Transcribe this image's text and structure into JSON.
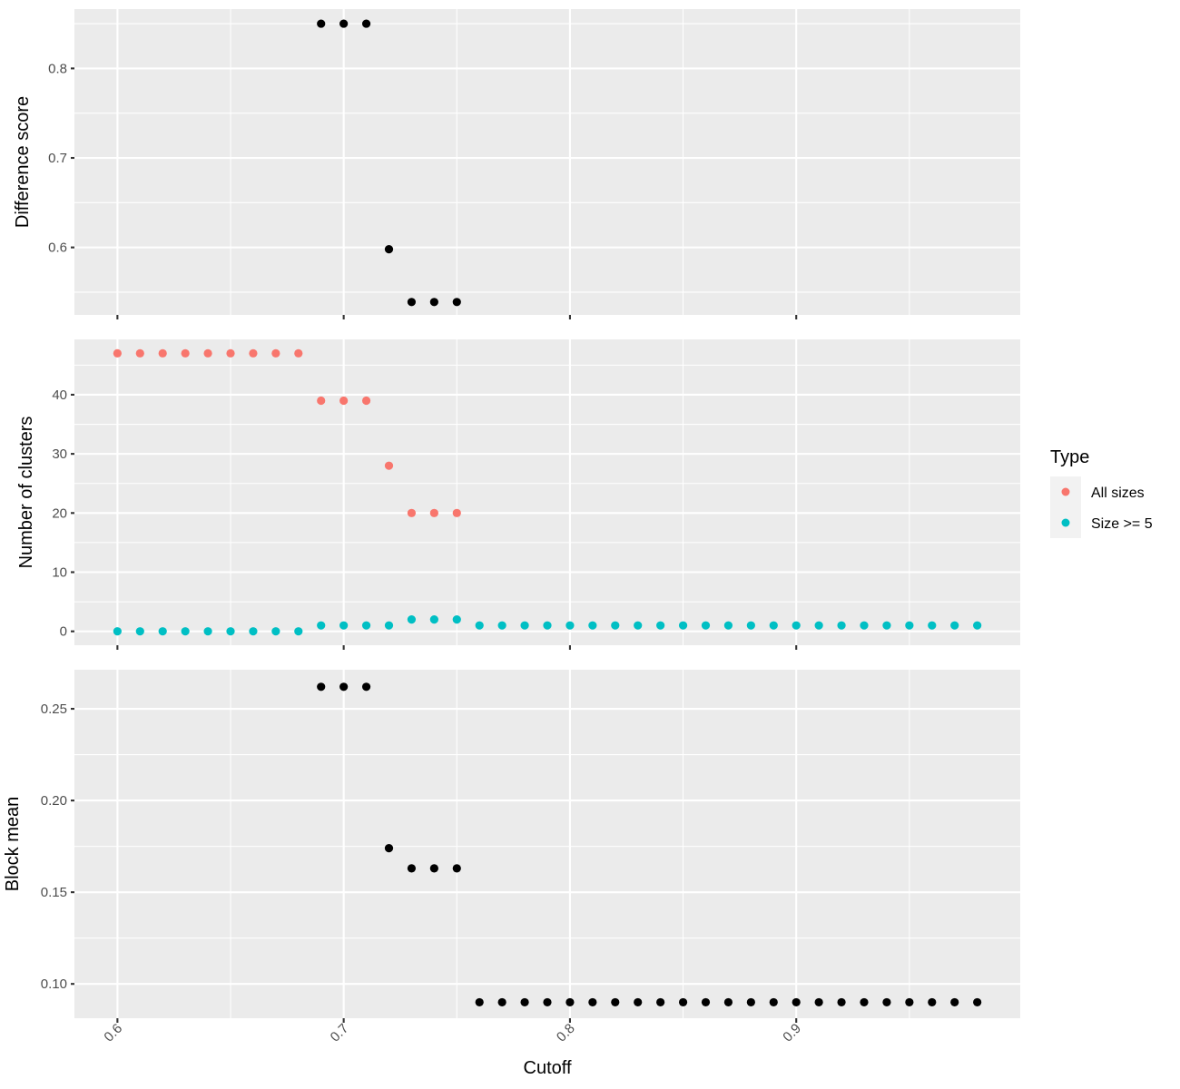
{
  "colors": {
    "all_sizes": "#F8766D",
    "size_ge_5": "#00BFC4",
    "black": "#000000",
    "panel": "#EBEBEB"
  },
  "chart_data": {
    "type": "scatter",
    "xlabel": "Cutoff",
    "x_ticks": [
      "0.6",
      "0.7",
      "0.8",
      "0.9"
    ],
    "xlim": [
      0.581,
      0.999
    ],
    "grid": true,
    "legend": {
      "title": "Type",
      "placement": "right",
      "entries": [
        {
          "label": "All sizes",
          "color": "#F8766D"
        },
        {
          "label": "Size >= 5",
          "color": "#00BFC4"
        }
      ]
    },
    "panels": [
      {
        "id": "difference",
        "ylabel": "Difference score",
        "ylim": [
          0.5246,
          0.8663
        ],
        "y_ticks": [
          "0.6",
          "0.7",
          "0.8"
        ],
        "series": [
          {
            "color": "#000000",
            "x": [
              0.69,
              0.7,
              0.71,
              0.72,
              0.73,
              0.74,
              0.75
            ],
            "y": [
              0.85,
              0.85,
              0.85,
              0.598,
              0.539,
              0.539,
              0.539
            ]
          }
        ]
      },
      {
        "id": "clusters",
        "ylabel": "Number of clusters",
        "ylim": [
          -2.35,
          49.35
        ],
        "y_ticks": [
          "0",
          "10",
          "20",
          "30",
          "40"
        ],
        "series": [
          {
            "name": "All sizes",
            "color": "#F8766D",
            "x": [
              0.6,
              0.61,
              0.62,
              0.63,
              0.64,
              0.65,
              0.66,
              0.67,
              0.68,
              0.69,
              0.7,
              0.71,
              0.72,
              0.73,
              0.74,
              0.75
            ],
            "y": [
              47,
              47,
              47,
              47,
              47,
              47,
              47,
              47,
              47,
              39,
              39,
              39,
              28,
              20,
              20,
              20
            ]
          },
          {
            "name": "Size >= 5",
            "color": "#00BFC4",
            "x": [
              0.6,
              0.61,
              0.62,
              0.63,
              0.64,
              0.65,
              0.66,
              0.67,
              0.68,
              0.69,
              0.7,
              0.71,
              0.72,
              0.73,
              0.74,
              0.75,
              0.76,
              0.77,
              0.78,
              0.79,
              0.8,
              0.81,
              0.82,
              0.83,
              0.84,
              0.85,
              0.86,
              0.87,
              0.88,
              0.89,
              0.9,
              0.91,
              0.92,
              0.93,
              0.94,
              0.95,
              0.96,
              0.97,
              0.98
            ],
            "y": [
              0,
              0,
              0,
              0,
              0,
              0,
              0,
              0,
              0,
              1,
              1,
              1,
              1,
              2,
              2,
              2,
              1,
              1,
              1,
              1,
              1,
              1,
              1,
              1,
              1,
              1,
              1,
              1,
              1,
              1,
              1,
              1,
              1,
              1,
              1,
              1,
              1,
              1,
              1
            ]
          }
        ]
      },
      {
        "id": "blockmean",
        "ylabel": "Block mean",
        "ylim": [
          0.0813,
          0.2713
        ],
        "y_ticks": [
          "0.10",
          "0.15",
          "0.20",
          "0.25"
        ],
        "series": [
          {
            "color": "#000000",
            "x": [
              0.69,
              0.7,
              0.71,
              0.72,
              0.73,
              0.74,
              0.75,
              0.76,
              0.77,
              0.78,
              0.79,
              0.8,
              0.81,
              0.82,
              0.83,
              0.84,
              0.85,
              0.86,
              0.87,
              0.88,
              0.89,
              0.9,
              0.91,
              0.92,
              0.93,
              0.94,
              0.95,
              0.96,
              0.97,
              0.98
            ],
            "y": [
              0.262,
              0.262,
              0.262,
              0.174,
              0.163,
              0.163,
              0.163,
              0.09,
              0.09,
              0.09,
              0.09,
              0.09,
              0.09,
              0.09,
              0.09,
              0.09,
              0.09,
              0.09,
              0.09,
              0.09,
              0.09,
              0.09,
              0.09,
              0.09,
              0.09,
              0.09,
              0.09,
              0.09,
              0.09,
              0.09
            ]
          }
        ]
      }
    ]
  }
}
